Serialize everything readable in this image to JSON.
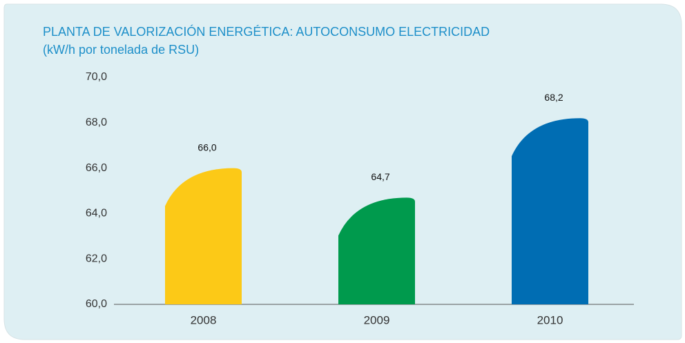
{
  "chart_data": {
    "type": "bar",
    "title": "PLANTA DE VALORIZACIÓN ENERGÉTICA: AUTOCONSUMO ELECTRICIDAD",
    "subtitle": "(kW/h por tonelada de RSU)",
    "categories": [
      "2008",
      "2009",
      "2010"
    ],
    "values": [
      66.0,
      64.7,
      68.2
    ],
    "value_labels": [
      "66,0",
      "64,7",
      "68,2"
    ],
    "colors": [
      "#fcc917",
      "#009a4d",
      "#006db3"
    ],
    "ylim": [
      60,
      70
    ],
    "yticks": [
      {
        "value": 60,
        "label": "60,0"
      },
      {
        "value": 62,
        "label": "62,0"
      },
      {
        "value": 64,
        "label": "64,0"
      },
      {
        "value": 66,
        "label": "66,0"
      },
      {
        "value": 68,
        "label": "68,0"
      },
      {
        "value": 70,
        "label": "70,0"
      }
    ],
    "grid": false
  }
}
